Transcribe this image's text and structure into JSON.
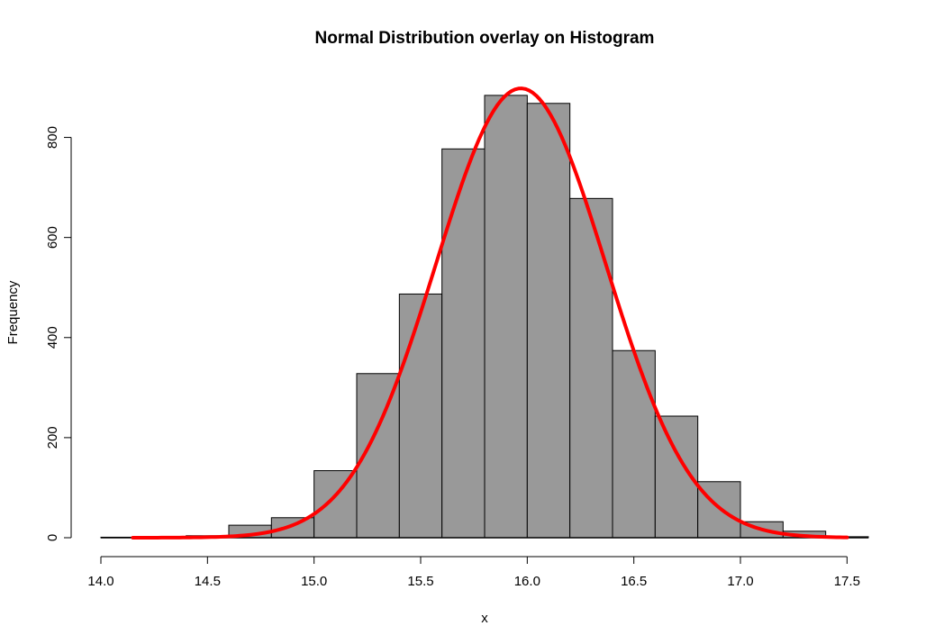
{
  "chart_data": {
    "type": "bar",
    "title": "Normal Distribution overlay on Histogram",
    "xlabel": "x",
    "ylabel": "Frequency",
    "x_ticks": [
      "14.0",
      "14.5",
      "15.0",
      "15.5",
      "16.0",
      "16.5",
      "17.0",
      "17.5"
    ],
    "y_ticks": [
      "0",
      "200",
      "400",
      "600",
      "800"
    ],
    "xlim": [
      14.0,
      17.6
    ],
    "ylim": [
      0,
      900
    ],
    "bins": [
      {
        "x0": 14.0,
        "x1": 14.2,
        "count": 1
      },
      {
        "x0": 14.2,
        "x1": 14.4,
        "count": 2
      },
      {
        "x0": 14.4,
        "x1": 14.6,
        "count": 4
      },
      {
        "x0": 14.6,
        "x1": 14.8,
        "count": 25
      },
      {
        "x0": 14.8,
        "x1": 15.0,
        "count": 40
      },
      {
        "x0": 15.0,
        "x1": 15.2,
        "count": 134
      },
      {
        "x0": 15.2,
        "x1": 15.4,
        "count": 328
      },
      {
        "x0": 15.4,
        "x1": 15.6,
        "count": 487
      },
      {
        "x0": 15.6,
        "x1": 15.8,
        "count": 777
      },
      {
        "x0": 15.8,
        "x1": 16.0,
        "count": 884
      },
      {
        "x0": 16.0,
        "x1": 16.2,
        "count": 868
      },
      {
        "x0": 16.2,
        "x1": 16.4,
        "count": 678
      },
      {
        "x0": 16.4,
        "x1": 16.6,
        "count": 374
      },
      {
        "x0": 16.6,
        "x1": 16.8,
        "count": 243
      },
      {
        "x0": 16.8,
        "x1": 17.0,
        "count": 112
      },
      {
        "x0": 17.0,
        "x1": 17.2,
        "count": 32
      },
      {
        "x0": 17.2,
        "x1": 17.4,
        "count": 13
      },
      {
        "x0": 17.4,
        "x1": 17.6,
        "count": 2
      }
    ],
    "curve": {
      "mean": 15.97,
      "sd": 0.4,
      "peak": 898,
      "x_range": [
        14.15,
        17.5
      ]
    },
    "colors": {
      "bar_fill": "#999999",
      "bar_stroke": "#000000",
      "curve": "#ff0000"
    }
  }
}
